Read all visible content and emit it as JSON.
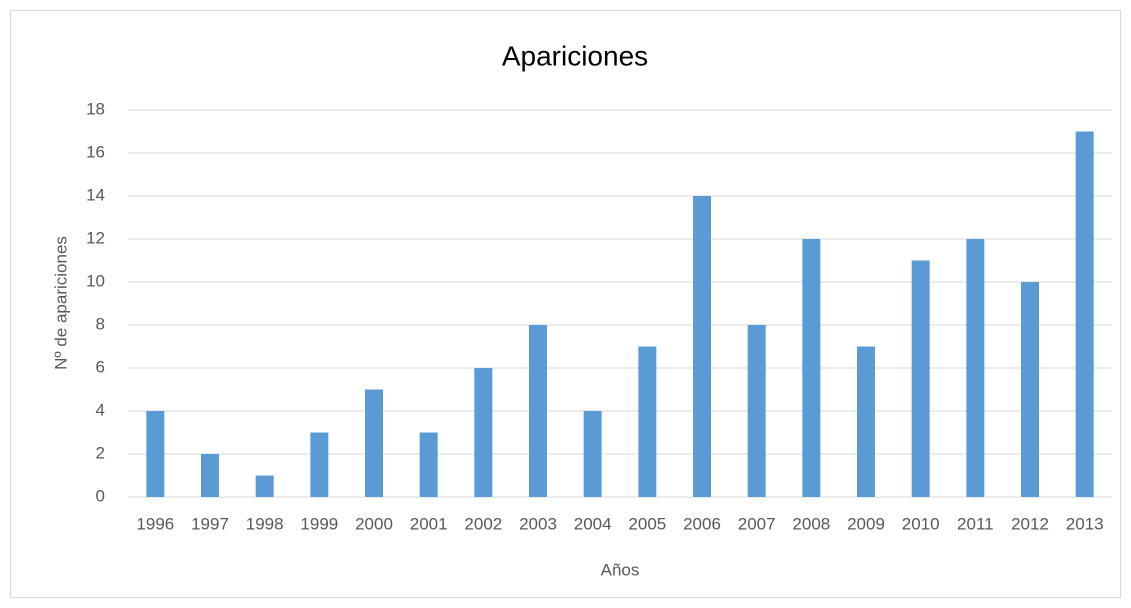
{
  "chart_data": {
    "type": "bar",
    "title": "Apariciones",
    "x_label": "Años",
    "y_label": "Nº de apariciones",
    "categories": [
      "1996",
      "1997",
      "1998",
      "1999",
      "2000",
      "2001",
      "2002",
      "2003",
      "2004",
      "2005",
      "2006",
      "2007",
      "2008",
      "2009",
      "2010",
      "2011",
      "2012",
      "2013"
    ],
    "values": [
      4,
      2,
      1,
      3,
      5,
      3,
      6,
      8,
      4,
      7,
      14,
      8,
      12,
      7,
      11,
      12,
      10,
      17
    ],
    "color": "#5b9bd5",
    "ylim": [
      0,
      18
    ],
    "yticks": [
      0,
      2,
      4,
      6,
      8,
      10,
      12,
      14,
      16,
      18
    ],
    "grid": true
  }
}
